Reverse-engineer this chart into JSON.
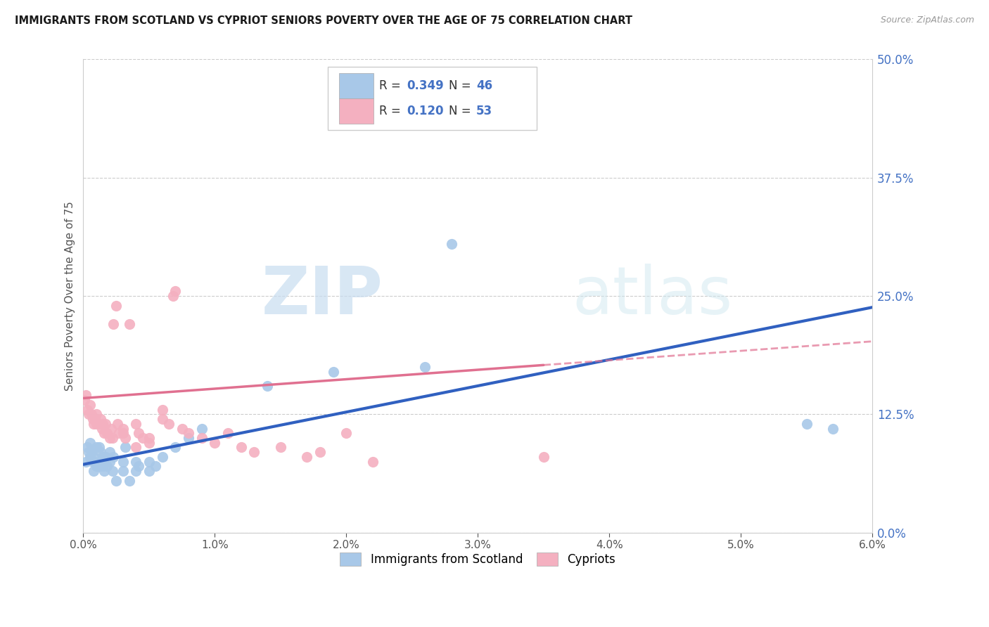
{
  "title": "IMMIGRANTS FROM SCOTLAND VS CYPRIOT SENIORS POVERTY OVER THE AGE OF 75 CORRELATION CHART",
  "source": "Source: ZipAtlas.com",
  "ylabel": "Seniors Poverty Over the Age of 75",
  "xlim": [
    0.0,
    0.06
  ],
  "ylim": [
    0.0,
    0.5
  ],
  "xticks": [
    0.0,
    0.01,
    0.02,
    0.03,
    0.04,
    0.05,
    0.06
  ],
  "xticklabels": [
    "0.0%",
    "1.0%",
    "2.0%",
    "3.0%",
    "4.0%",
    "5.0%",
    "6.0%"
  ],
  "yticks_right": [
    0.0,
    0.125,
    0.25,
    0.375,
    0.5
  ],
  "ytick_right_labels": [
    "0.0%",
    "12.5%",
    "25.0%",
    "37.5%",
    "50.0%"
  ],
  "color_scotland": "#a8c8e8",
  "color_cyprus": "#f4b0c0",
  "line_scotland_color": "#3060c0",
  "line_cyprus_color": "#e07090",
  "R_scotland": "0.349",
  "N_scotland": "46",
  "R_cyprus": "0.120",
  "N_cyprus": "53",
  "legend_label_scotland": "Immigrants from Scotland",
  "legend_label_cyprus": "Cypriots",
  "watermark_zip": "ZIP",
  "watermark_atlas": "atlas",
  "background_color": "#ffffff",
  "grid_color": "#cccccc",
  "text_color_blue": "#4472c4",
  "scotland_x": [
    0.0002,
    0.0003,
    0.0004,
    0.0005,
    0.0005,
    0.0006,
    0.0007,
    0.0008,
    0.0008,
    0.0009,
    0.001,
    0.001,
    0.0012,
    0.0012,
    0.0013,
    0.0014,
    0.0015,
    0.0015,
    0.0016,
    0.0017,
    0.0018,
    0.002,
    0.002,
    0.0022,
    0.0023,
    0.0025,
    0.003,
    0.003,
    0.0032,
    0.0035,
    0.004,
    0.004,
    0.0042,
    0.005,
    0.005,
    0.0055,
    0.006,
    0.007,
    0.008,
    0.009,
    0.014,
    0.019,
    0.026,
    0.028,
    0.055,
    0.057
  ],
  "scotland_y": [
    0.075,
    0.09,
    0.085,
    0.08,
    0.095,
    0.085,
    0.075,
    0.065,
    0.08,
    0.075,
    0.07,
    0.09,
    0.07,
    0.09,
    0.085,
    0.075,
    0.07,
    0.08,
    0.065,
    0.08,
    0.07,
    0.075,
    0.085,
    0.065,
    0.08,
    0.055,
    0.065,
    0.075,
    0.09,
    0.055,
    0.075,
    0.065,
    0.07,
    0.065,
    0.075,
    0.07,
    0.08,
    0.09,
    0.1,
    0.11,
    0.155,
    0.17,
    0.175,
    0.305,
    0.115,
    0.11
  ],
  "cyprus_x": [
    0.0001,
    0.0002,
    0.0003,
    0.0004,
    0.0005,
    0.0006,
    0.0007,
    0.0008,
    0.0009,
    0.001,
    0.001,
    0.0012,
    0.0013,
    0.0014,
    0.0015,
    0.0016,
    0.0017,
    0.0018,
    0.002,
    0.0021,
    0.0022,
    0.0023,
    0.0025,
    0.0026,
    0.0027,
    0.003,
    0.003,
    0.0032,
    0.0035,
    0.004,
    0.004,
    0.0042,
    0.0045,
    0.005,
    0.005,
    0.006,
    0.006,
    0.0065,
    0.0068,
    0.007,
    0.0075,
    0.008,
    0.009,
    0.01,
    0.011,
    0.012,
    0.013,
    0.015,
    0.017,
    0.018,
    0.02,
    0.022,
    0.035
  ],
  "cyprus_y": [
    0.14,
    0.145,
    0.13,
    0.125,
    0.135,
    0.125,
    0.12,
    0.115,
    0.12,
    0.115,
    0.125,
    0.115,
    0.12,
    0.11,
    0.115,
    0.105,
    0.115,
    0.105,
    0.1,
    0.11,
    0.1,
    0.22,
    0.24,
    0.115,
    0.105,
    0.11,
    0.105,
    0.1,
    0.22,
    0.115,
    0.09,
    0.105,
    0.1,
    0.095,
    0.1,
    0.13,
    0.12,
    0.115,
    0.25,
    0.255,
    0.11,
    0.105,
    0.1,
    0.095,
    0.105,
    0.09,
    0.085,
    0.09,
    0.08,
    0.085,
    0.105,
    0.075,
    0.08
  ],
  "scotland_line_x0": 0.0,
  "scotland_line_y0": 0.072,
  "scotland_line_x1": 0.06,
  "scotland_line_y1": 0.238,
  "cyprus_line_solid_x0": 0.0,
  "cyprus_line_solid_y0": 0.142,
  "cyprus_line_solid_x1": 0.035,
  "cyprus_line_solid_y1": 0.177,
  "cyprus_line_dash_x0": 0.035,
  "cyprus_line_dash_y0": 0.177,
  "cyprus_line_dash_x1": 0.06,
  "cyprus_line_dash_y1": 0.202
}
